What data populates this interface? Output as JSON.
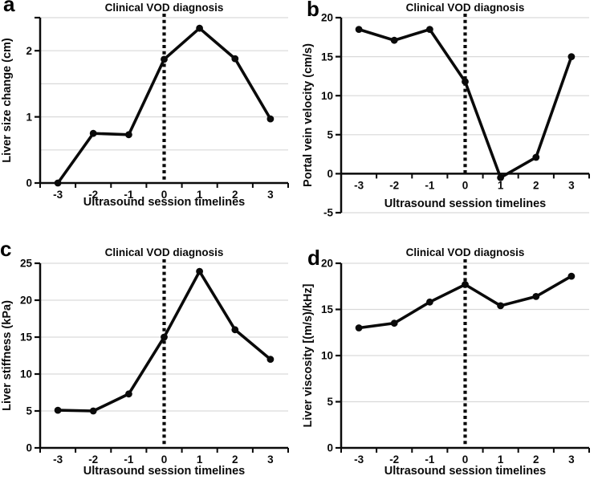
{
  "figure": {
    "background": "#ffffff",
    "line_color": "#0a0a0a",
    "grid_color": "#d9d9d9"
  },
  "chart_data": [
    {
      "panel": "a",
      "type": "line",
      "title": "Clinical VOD diagnosis",
      "xlabel": "Ultrasound session timelines",
      "ylabel": "Liver size change (cm)",
      "x": [
        -3,
        -2,
        -1,
        0,
        1,
        2,
        3
      ],
      "values": [
        0,
        0.75,
        0.73,
        1.87,
        2.34,
        1.88,
        0.97
      ],
      "ylim": [
        0,
        2.5
      ],
      "yticks": [
        0,
        1,
        2
      ],
      "gridlines": [
        0.5,
        1,
        1.5,
        2,
        2.5
      ],
      "vline_x": 0,
      "axis_cross": 0,
      "legend": "none",
      "grid": "on"
    },
    {
      "panel": "b",
      "type": "line",
      "title": "Clinical VOD diagnosis",
      "xlabel": "Ultrasound session timelines",
      "ylabel": "Portal vein velocity (cm/s)",
      "x": [
        -3,
        -2,
        -1,
        0,
        1,
        2,
        3
      ],
      "values": [
        18.5,
        17.1,
        18.5,
        11.8,
        -0.5,
        2.1,
        15.0
      ],
      "ylim": [
        -5,
        20
      ],
      "yticks": [
        -5,
        0,
        5,
        10,
        15,
        20
      ],
      "gridlines": [
        -5,
        5,
        10,
        15,
        20
      ],
      "vline_x": 0,
      "axis_cross": 0,
      "legend": "none",
      "grid": "on"
    },
    {
      "panel": "c",
      "type": "line",
      "title": "Clinical VOD diagnosis",
      "xlabel": "Ultrasound session timelines",
      "ylabel": "Liver stiffness (kPa)",
      "x": [
        -3,
        -2,
        -1,
        0,
        1,
        2,
        3
      ],
      "values": [
        5.1,
        5.0,
        7.3,
        15.0,
        23.9,
        16.0,
        12.0
      ],
      "ylim": [
        0,
        25
      ],
      "yticks": [
        0,
        5,
        10,
        15,
        20,
        25
      ],
      "gridlines": [
        5,
        10,
        15,
        20,
        25
      ],
      "vline_x": 0,
      "axis_cross": 0,
      "legend": "none",
      "grid": "on"
    },
    {
      "panel": "d",
      "type": "line",
      "title": "Clinical VOD diagnosis",
      "xlabel": "Ultrasound session timelines",
      "ylabel": "Liver viscosity [(m/s)/kHz]",
      "x": [
        -3,
        -2,
        -1,
        0,
        1,
        2,
        3
      ],
      "values": [
        13.0,
        13.5,
        15.8,
        17.7,
        15.4,
        16.4,
        18.6
      ],
      "ylim": [
        0,
        20
      ],
      "yticks": [
        0,
        5,
        10,
        15,
        20
      ],
      "gridlines": [
        5,
        10,
        15,
        20
      ],
      "vline_x": 0,
      "axis_cross": 0,
      "legend": "none",
      "grid": "on"
    }
  ]
}
